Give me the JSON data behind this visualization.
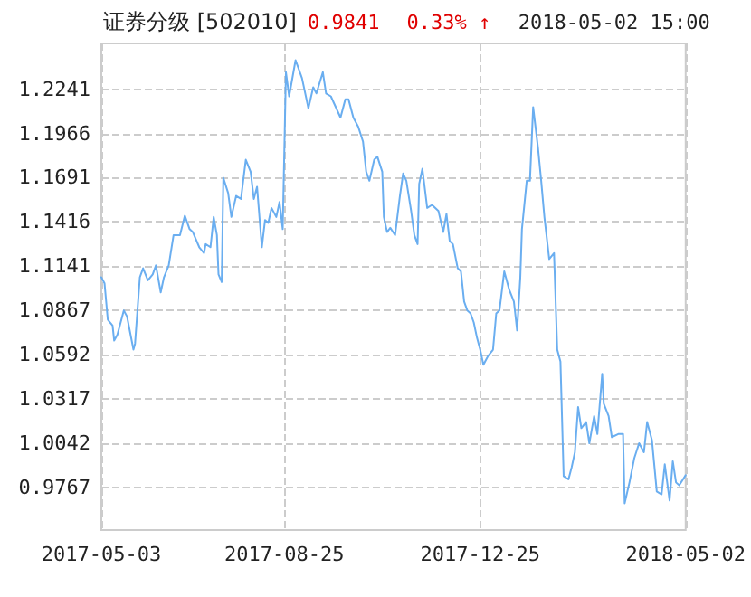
{
  "chart_data": {
    "type": "line",
    "title": "证券分级 [502010]",
    "annotations": [
      "0.9841",
      "0.33% ↑",
      "2018-05-02 15:00"
    ],
    "x": [
      "2017-05-03",
      "2017-05-05",
      "2017-05-07",
      "2017-05-10",
      "2017-05-11",
      "2017-05-13",
      "2017-05-17",
      "2017-05-19",
      "2017-05-23",
      "2017-05-24",
      "2017-05-27",
      "2017-05-29",
      "2017-06-01",
      "2017-06-04",
      "2017-06-06",
      "2017-06-08",
      "2017-06-09",
      "2017-06-11",
      "2017-06-14",
      "2017-06-17",
      "2017-06-21",
      "2017-06-24",
      "2017-06-27",
      "2017-06-29",
      "2017-07-03",
      "2017-07-06",
      "2017-07-07",
      "2017-07-10",
      "2017-07-12",
      "2017-07-14",
      "2017-07-15",
      "2017-07-17",
      "2017-07-18",
      "2017-07-21",
      "2017-07-23",
      "2017-07-26",
      "2017-07-29",
      "2017-08-01",
      "2017-08-04",
      "2017-08-06",
      "2017-08-08",
      "2017-08-11",
      "2017-08-13",
      "2017-08-15",
      "2017-08-17",
      "2017-08-20",
      "2017-08-22",
      "2017-08-24",
      "2017-08-26",
      "2017-08-28",
      "2017-09-01",
      "2017-09-05",
      "2017-09-09",
      "2017-09-12",
      "2017-09-14",
      "2017-09-18",
      "2017-09-20",
      "2017-09-23",
      "2017-09-29",
      "2017-10-02",
      "2017-10-04",
      "2017-10-07",
      "2017-10-10",
      "2017-10-13",
      "2017-10-15",
      "2017-10-17",
      "2017-10-20",
      "2017-10-22",
      "2017-10-25",
      "2017-10-26",
      "2017-10-28",
      "2017-10-30",
      "2017-11-02",
      "2017-11-05",
      "2017-11-07",
      "2017-11-09",
      "2017-11-12",
      "2017-11-14",
      "2017-11-16",
      "2017-11-17",
      "2017-11-19",
      "2017-11-22",
      "2017-11-25",
      "2017-11-29",
      "2017-12-02",
      "2017-12-04",
      "2017-12-06",
      "2017-12-08",
      "2017-12-11",
      "2017-12-13",
      "2017-12-15",
      "2017-12-17",
      "2017-12-19",
      "2017-12-21",
      "2017-12-23",
      "2017-12-25",
      "2017-12-27",
      "2017-12-30",
      "2018-01-02",
      "2018-01-04",
      "2018-01-06",
      "2018-01-09",
      "2018-01-12",
      "2018-01-15",
      "2018-01-17",
      "2018-01-19",
      "2018-01-20",
      "2018-01-23",
      "2018-01-25",
      "2018-01-27",
      "2018-01-30",
      "2018-02-01",
      "2018-02-03",
      "2018-02-06",
      "2018-02-09",
      "2018-02-11",
      "2018-02-13",
      "2018-02-15",
      "2018-02-18",
      "2018-02-20",
      "2018-02-22",
      "2018-02-24",
      "2018-02-26",
      "2018-03-01",
      "2018-03-03",
      "2018-03-06",
      "2018-03-08",
      "2018-03-11",
      "2018-03-12",
      "2018-03-15",
      "2018-03-17",
      "2018-03-21",
      "2018-03-24",
      "2018-03-25",
      "2018-03-28",
      "2018-03-31",
      "2018-04-03",
      "2018-04-06",
      "2018-04-08",
      "2018-04-11",
      "2018-04-14",
      "2018-04-17",
      "2018-04-19",
      "2018-04-22",
      "2018-04-24",
      "2018-04-26",
      "2018-04-28",
      "2018-05-02"
    ],
    "series": [
      {
        "color": "#6aaef0",
        "values": [
          1.1072,
          1.1034,
          1.0809,
          1.0772,
          1.0678,
          1.0715,
          1.0865,
          1.0828,
          1.0622,
          1.0659,
          1.1072,
          1.1128,
          1.1053,
          1.109,
          1.1146,
          1.1034,
          1.0978,
          1.1072,
          1.1146,
          1.1334,
          1.1334,
          1.1455,
          1.1371,
          1.1353,
          1.1259,
          1.1222,
          1.1278,
          1.1259,
          1.1447,
          1.1334,
          1.109,
          1.1042,
          1.1691,
          1.1596,
          1.1447,
          1.1578,
          1.1559,
          1.1803,
          1.1728,
          1.1559,
          1.1635,
          1.1259,
          1.1428,
          1.141,
          1.1503,
          1.1447,
          1.154,
          1.1371,
          1.2347,
          1.2197,
          1.2422,
          1.231,
          1.2122,
          1.2253,
          1.2215,
          1.2347,
          1.2215,
          1.2197,
          1.2065,
          1.2178,
          1.2178,
          1.2065,
          1.2009,
          1.1916,
          1.1728,
          1.1672,
          1.1803,
          1.1821,
          1.1728,
          1.1447,
          1.1353,
          1.1379,
          1.1334,
          1.1578,
          1.1717,
          1.1672,
          1.1484,
          1.1334,
          1.1278,
          1.1653,
          1.1747,
          1.1503,
          1.1522,
          1.1484,
          1.1353,
          1.1466,
          1.1297,
          1.1278,
          1.1128,
          1.1109,
          1.0921,
          1.0865,
          1.0847,
          1.0791,
          1.0696,
          1.0622,
          1.0528,
          1.0584,
          1.0622,
          1.0847,
          1.0865,
          1.1109,
          1.0997,
          1.0921,
          1.0741,
          1.1072,
          1.1371,
          1.1672,
          1.1672,
          1.213,
          1.1878,
          1.1672,
          1.1447,
          1.1185,
          1.1222,
          1.0622,
          1.0547,
          0.9835,
          0.9815,
          0.9891,
          0.9984,
          1.0265,
          1.0134,
          1.0172,
          1.004,
          1.0209,
          1.0097,
          1.0471,
          1.0285,
          1.0209,
          1.0078,
          1.0097,
          1.0097,
          0.9666,
          0.9796,
          0.9947,
          1.004,
          0.9984,
          1.0172,
          1.006,
          0.974,
          0.9722,
          0.9909,
          0.9684,
          0.9928,
          0.9796,
          0.9778,
          0.9841
        ]
      }
    ],
    "xlim": [
      "2017-05-03",
      "2018-05-02"
    ],
    "xticks": [
      "2017-05-03",
      "2017-08-25",
      "2017-12-25",
      "2018-05-02"
    ],
    "ylim": [
      0.95,
      1.2526
    ],
    "yticks": [
      0.9767,
      1.0042,
      1.0317,
      1.0592,
      1.0867,
      1.1141,
      1.1416,
      1.1691,
      1.1966,
      1.2241
    ],
    "grid": true,
    "marker": "none",
    "line_style": "solid"
  }
}
